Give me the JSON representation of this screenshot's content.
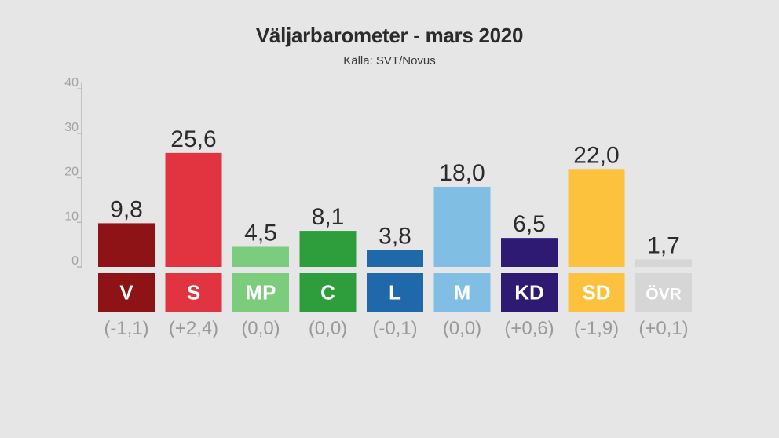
{
  "chart_data": {
    "type": "bar",
    "title": "Väljarbarometer - mars 2020",
    "subtitle": "Källa: SVT/Novus",
    "ylim": [
      0,
      40
    ],
    "yticks": [
      {
        "value": 0,
        "label": "0"
      },
      {
        "value": 10,
        "label": "10"
      },
      {
        "value": 20,
        "label": "20"
      },
      {
        "value": 30,
        "label": "30"
      },
      {
        "value": 40,
        "label": "40"
      }
    ],
    "grid": false,
    "bars": [
      {
        "party": "V",
        "value": 9.8,
        "value_label": "9,8",
        "change": "(-1,1)",
        "color": "#8e1316",
        "label_color": "#8e1316"
      },
      {
        "party": "S",
        "value": 25.6,
        "value_label": "25,6",
        "change": "(+2,4)",
        "color": "#e13340",
        "label_color": "#e13340"
      },
      {
        "party": "MP",
        "value": 4.5,
        "value_label": "4,5",
        "change": "(0,0)",
        "color": "#7ccc7e",
        "label_color": "#7ccc7e"
      },
      {
        "party": "C",
        "value": 8.1,
        "value_label": "8,1",
        "change": "(0,0)",
        "color": "#2e9e3c",
        "label_color": "#2e9e3c"
      },
      {
        "party": "L",
        "value": 3.8,
        "value_label": "3,8",
        "change": "(-0,1)",
        "color": "#1f68a9",
        "label_color": "#1f68a9"
      },
      {
        "party": "M",
        "value": 18.0,
        "value_label": "18,0",
        "change": "(0,0)",
        "color": "#80bfe3",
        "label_color": "#80bfe3"
      },
      {
        "party": "KD",
        "value": 6.5,
        "value_label": "6,5",
        "change": "(+0,6)",
        "color": "#2e1a73",
        "label_color": "#2e1a73"
      },
      {
        "party": "SD",
        "value": 22.0,
        "value_label": "22,0",
        "change": "(-1,9)",
        "color": "#fcc13d",
        "label_color": "#fcc13d"
      },
      {
        "party": "ÖVR",
        "value": 1.7,
        "value_label": "1,7",
        "change": "(+0,1)",
        "color": "#d6d6d6",
        "label_color": "#d6d6d6"
      }
    ]
  }
}
